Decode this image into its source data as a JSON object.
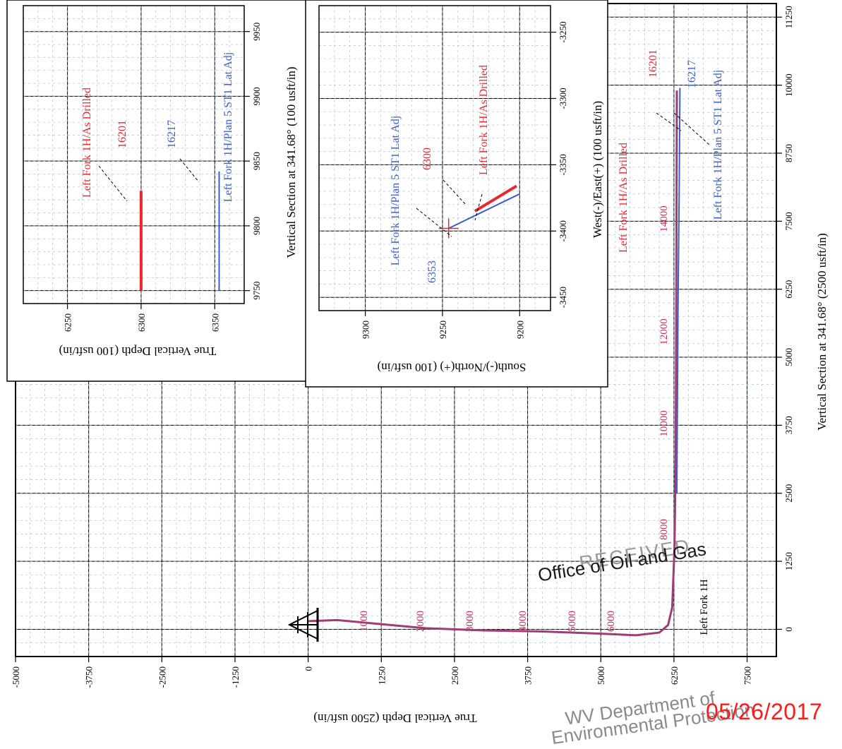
{
  "colors": {
    "as_drilled": "#e8282d",
    "plan": "#3a5fc8",
    "section": "#a03c78",
    "grid": "#9fb4c9",
    "stamp_red": "#ff1a1a"
  },
  "stamps": {
    "received": "RECEIVED",
    "office": "Office of Oil and Gas",
    "department": "WV Department of",
    "environmental": "Environmental Protection",
    "date": "05/26/2017"
  },
  "chart_data": [
    {
      "id": "main",
      "type": "line",
      "xlabel": "True Vertical Depth (2500 usft/in)",
      "ylabel": "Vertical Section at 341.68° (2500 usft/in)",
      "xlim": [
        -5000,
        8000
      ],
      "ylim": [
        -500,
        11500
      ],
      "x_ticks": [
        -5000,
        -3750,
        -2500,
        -1250,
        0,
        1250,
        2500,
        3750,
        5000,
        6250,
        7500
      ],
      "y_ticks": [
        0,
        1250,
        2500,
        3750,
        5000,
        6250,
        7500,
        8750,
        10000,
        11250
      ],
      "depth_labels_md": [
        "1000",
        "2000",
        "3000",
        "4000",
        "5000",
        "6000",
        "8000",
        "10000",
        "12000",
        "14000",
        "16201",
        "16217"
      ],
      "series": [
        {
          "name": "Left Fork 1H/As Drilled",
          "points": [
            [
              0,
              150
            ],
            [
              500,
              170
            ],
            [
              1000,
              120
            ],
            [
              2000,
              20
            ],
            [
              3000,
              -20
            ],
            [
              4000,
              -40
            ],
            [
              5000,
              -80
            ],
            [
              5600,
              -110
            ],
            [
              6000,
              -60
            ],
            [
              6150,
              80
            ],
            [
              6220,
              400
            ],
            [
              6260,
              1500
            ],
            [
              6280,
              3200
            ],
            [
              6290,
              6000
            ],
            [
              6300,
              9900
            ]
          ]
        },
        {
          "name": "Left Fork 1H/Plan 5 ST1 Lat Adj",
          "points": [
            [
              6300,
              2500
            ],
            [
              6320,
              6000
            ],
            [
              6340,
              8000
            ],
            [
              6353,
              9950
            ]
          ]
        }
      ],
      "annotations": [
        "Left Fork 1H/As Drilled",
        "Left Fork 1H/Plan 5 ST1 Lat Adj",
        "Left Fork 1H"
      ]
    },
    {
      "id": "inset_vs",
      "type": "line",
      "xlabel": "True Vertical Depth (100 usft/in)",
      "ylabel": "Vertical Section at 341.68° (100 usft/in)",
      "xlim": [
        6220,
        6370
      ],
      "ylim": [
        9740,
        9970
      ],
      "x_ticks": [
        6250,
        6300,
        6350
      ],
      "y_ticks": [
        9750,
        9800,
        9850,
        9900,
        9950
      ],
      "series": [
        {
          "name": "Left Fork 1H/As Drilled",
          "points": [
            [
              6300,
              9750
            ],
            [
              6300,
              9827
            ]
          ]
        },
        {
          "name": "Left Fork 1H/Plan 5 ST1 Lat Adj",
          "points": [
            [
              6353,
              9750
            ],
            [
              6353,
              9842
            ]
          ]
        }
      ],
      "annotations": [
        "Left Fork 1H/As Drilled",
        "16201",
        "16217",
        "Left Fork 1H/Plan 5 ST1 Lat Adj"
      ]
    },
    {
      "id": "inset_plan",
      "type": "line",
      "xlabel": "South(-)/North(+) (100 usft/in)",
      "ylabel": "West(-)/East(+) (100 usft/in)",
      "xlim": [
        9180,
        9330
      ],
      "ylim": [
        -3460,
        -3230
      ],
      "x_ticks": [
        9200,
        9250,
        9300
      ],
      "y_ticks": [
        -3450,
        -3400,
        -3350,
        -3300,
        -3250
      ],
      "series": [
        {
          "name": "Left Fork 1H/As Drilled",
          "points": [
            [
              9229,
              -3385
            ],
            [
              9202,
              -3366
            ]
          ]
        },
        {
          "name": "Left Fork 1H/Plan 5 ST1 Lat Adj",
          "points": [
            [
              9246,
              -3398
            ],
            [
              9200,
              -3372
            ]
          ]
        }
      ],
      "annotations": [
        "Left Fork 1H/Plan 5 ST1 Lat Adj",
        "6300",
        "Left Fork 1H/As Drilled",
        "6353"
      ]
    }
  ]
}
